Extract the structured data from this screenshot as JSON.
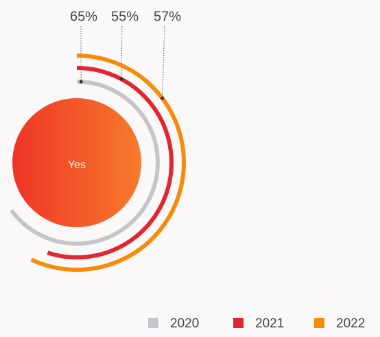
{
  "chart_data": {
    "type": "radial_bar",
    "center_label": "Yes",
    "ylim": [
      0,
      100
    ],
    "series": [
      {
        "name": "2020",
        "color": "#c6c6ca",
        "values": [
          65
        ],
        "value_labels": [
          "65%"
        ]
      },
      {
        "name": "2021",
        "color": "#e0262f",
        "values": [
          55
        ],
        "value_labels": [
          "55%"
        ]
      },
      {
        "name": "2022",
        "color": "#f78c0a",
        "values": [
          57
        ],
        "value_labels": [
          "57%"
        ]
      }
    ]
  }
}
